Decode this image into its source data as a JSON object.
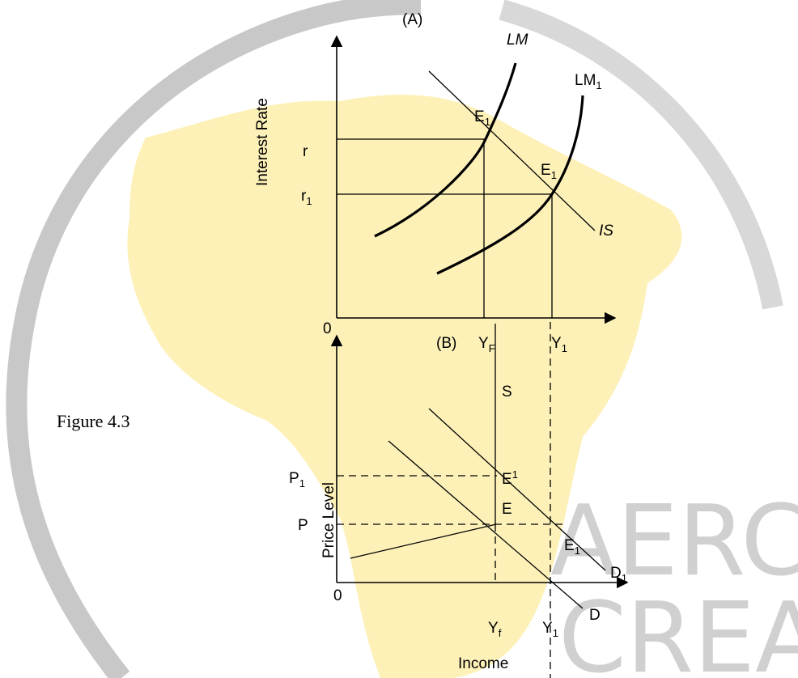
{
  "figure_label": "Figure 4.3",
  "watermark": [
    "AERC",
    "CREA"
  ],
  "panel_a": {
    "label": "(A)",
    "y_axis": "Interest Rate",
    "origin": "0",
    "lm": "LM",
    "lm1": {
      "text": "LM",
      "sub": "1"
    },
    "is": "IS",
    "e_upper": {
      "text": "E",
      "sub": "1"
    },
    "e_lower": {
      "text": "E",
      "sub": "1"
    },
    "r": "r",
    "r1": {
      "text": "r",
      "sub": "1"
    },
    "yf": {
      "text": "Y",
      "sub": "F"
    },
    "y1": {
      "text": "Y",
      "sub": "1"
    }
  },
  "panel_b": {
    "label": "(B)",
    "y_axis": "Price Level",
    "x_axis": "Income",
    "origin": "0",
    "s": "S",
    "p1": {
      "text": "P",
      "sub": "1"
    },
    "p": "P",
    "e_sup": {
      "text": "E",
      "sup": "1"
    },
    "e": "E",
    "e1": {
      "text": "E",
      "sub": "1"
    },
    "d1": {
      "text": "D",
      "sub": "1"
    },
    "d": "D",
    "yf": {
      "text": "Y",
      "sub": "f"
    },
    "y1": {
      "text": "Y",
      "sub": "1"
    }
  }
}
